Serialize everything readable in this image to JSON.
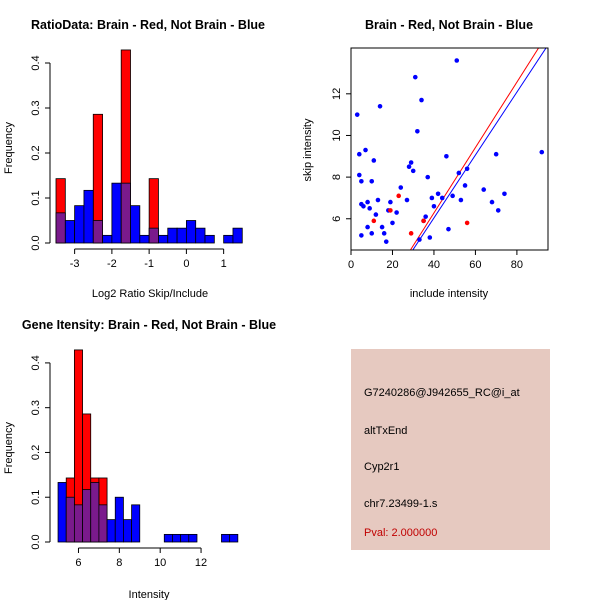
{
  "colors": {
    "brain": "#ff0000",
    "not_brain": "#0000ff",
    "overlap": "#7a1a8c",
    "info_bg": "#e6c9c0",
    "pval": "#c00000"
  },
  "chart_data": [
    {
      "id": "ratio-hist",
      "type": "bar",
      "title": "RatioData: Brain - Red, Not Brain - Blue",
      "xlabel": "Log2 Ratio Skip/Include",
      "ylabel": "Frequency",
      "xlim": [
        -3.5,
        1.6
      ],
      "ylim": [
        0,
        0.44
      ],
      "xticks": [
        -3,
        -2,
        -1,
        0,
        1
      ],
      "yticks": [
        0.0,
        0.1,
        0.2,
        0.3,
        0.4
      ],
      "bin_width": 0.25,
      "series": [
        {
          "name": "Brain",
          "bins": [
            {
              "x0": -3.5,
              "v": 0.143
            },
            {
              "x0": -2.5,
              "v": 0.286
            },
            {
              "x0": -1.75,
              "v": 0.429
            },
            {
              "x0": -1.0,
              "v": 0.143
            }
          ]
        },
        {
          "name": "Not Brain",
          "bins": [
            {
              "x0": -3.5,
              "v": 0.067
            },
            {
              "x0": -3.25,
              "v": 0.05
            },
            {
              "x0": -3.0,
              "v": 0.083
            },
            {
              "x0": -2.75,
              "v": 0.117
            },
            {
              "x0": -2.5,
              "v": 0.05
            },
            {
              "x0": -2.25,
              "v": 0.017
            },
            {
              "x0": -2.0,
              "v": 0.133
            },
            {
              "x0": -1.75,
              "v": 0.133
            },
            {
              "x0": -1.5,
              "v": 0.083
            },
            {
              "x0": -1.25,
              "v": 0.017
            },
            {
              "x0": -1.0,
              "v": 0.033
            },
            {
              "x0": -0.75,
              "v": 0.017
            },
            {
              "x0": -0.5,
              "v": 0.033
            },
            {
              "x0": -0.25,
              "v": 0.033
            },
            {
              "x0": 0.0,
              "v": 0.05
            },
            {
              "x0": 0.25,
              "v": 0.033
            },
            {
              "x0": 0.5,
              "v": 0.017
            },
            {
              "x0": 1.0,
              "v": 0.017
            },
            {
              "x0": 1.25,
              "v": 0.033
            }
          ]
        }
      ]
    },
    {
      "id": "scatter",
      "type": "scatter",
      "title": "Brain - Red, Not Brain - Blue",
      "xlabel": "include intensity",
      "ylabel": "skip intensity",
      "xlim": [
        0,
        95
      ],
      "ylim": [
        4.5,
        14.2
      ],
      "xticks": [
        0,
        20,
        40,
        60,
        80
      ],
      "yticks": [
        6,
        8,
        10,
        12
      ],
      "series": [
        {
          "name": "Not Brain",
          "points": [
            [
              3,
              11.0
            ],
            [
              4,
              8.1
            ],
            [
              4,
              9.1
            ],
            [
              5,
              7.8
            ],
            [
              5,
              6.7
            ],
            [
              5,
              5.2
            ],
            [
              6,
              6.6
            ],
            [
              7,
              9.3
            ],
            [
              8,
              6.8
            ],
            [
              8,
              5.6
            ],
            [
              9,
              6.5
            ],
            [
              10,
              7.8
            ],
            [
              10,
              5.3
            ],
            [
              11,
              8.8
            ],
            [
              12,
              6.2
            ],
            [
              13,
              6.9
            ],
            [
              14,
              11.4
            ],
            [
              15,
              5.6
            ],
            [
              16,
              5.3
            ],
            [
              17,
              4.9
            ],
            [
              18,
              6.4
            ],
            [
              19,
              6.8
            ],
            [
              20,
              5.8
            ],
            [
              22,
              6.3
            ],
            [
              24,
              7.5
            ],
            [
              27,
              6.9
            ],
            [
              28,
              8.5
            ],
            [
              29,
              8.7
            ],
            [
              30,
              8.3
            ],
            [
              31,
              12.8
            ],
            [
              32,
              10.2
            ],
            [
              33,
              5.0
            ],
            [
              34,
              11.7
            ],
            [
              35,
              5.9
            ],
            [
              36,
              6.1
            ],
            [
              37,
              8.0
            ],
            [
              38,
              5.1
            ],
            [
              39,
              7.0
            ],
            [
              40,
              6.6
            ],
            [
              42,
              7.2
            ],
            [
              44,
              7.0
            ],
            [
              46,
              9.0
            ],
            [
              47,
              5.5
            ],
            [
              49,
              7.1
            ],
            [
              51,
              13.6
            ],
            [
              52,
              8.2
            ],
            [
              53,
              6.9
            ],
            [
              55,
              7.6
            ],
            [
              56,
              8.4
            ],
            [
              64,
              7.4
            ],
            [
              68,
              6.8
            ],
            [
              70,
              9.1
            ],
            [
              71,
              6.4
            ],
            [
              74,
              7.2
            ],
            [
              92,
              9.2
            ]
          ]
        },
        {
          "name": "Brain",
          "points": [
            [
              11,
              5.9
            ],
            [
              19,
              6.4
            ],
            [
              23,
              7.1
            ],
            [
              29,
              5.3
            ],
            [
              35,
              5.9
            ],
            [
              56,
              5.8
            ]
          ]
        }
      ],
      "lines": [
        {
          "name": "Brain fit",
          "color_key": "brain",
          "slope": 0.157,
          "intercept": 0.0
        },
        {
          "name": "Not Brain fit",
          "color_key": "not_brain",
          "slope": 0.151,
          "intercept": 0.0
        }
      ]
    },
    {
      "id": "gene-hist",
      "type": "bar",
      "title": "Gene Itensity: Brain - Red, Not Brain - Blue",
      "xlabel": "Intensity",
      "ylabel": "Frequency",
      "xlim": [
        4.9,
        14.2
      ],
      "ylim": [
        0,
        0.44
      ],
      "xticks": [
        6,
        8,
        10,
        12
      ],
      "yticks": [
        0.0,
        0.1,
        0.2,
        0.3,
        0.4
      ],
      "bin_width": 0.4,
      "series": [
        {
          "name": "Brain",
          "bins": [
            {
              "x0": 5.4,
              "v": 0.143
            },
            {
              "x0": 5.8,
              "v": 0.429
            },
            {
              "x0": 6.2,
              "v": 0.286
            },
            {
              "x0": 6.6,
              "v": 0.143
            },
            {
              "x0": 7.0,
              "v": 0.143
            }
          ]
        },
        {
          "name": "Not Brain",
          "bins": [
            {
              "x0": 5.0,
              "v": 0.133
            },
            {
              "x0": 5.4,
              "v": 0.1
            },
            {
              "x0": 5.8,
              "v": 0.083
            },
            {
              "x0": 6.2,
              "v": 0.117
            },
            {
              "x0": 6.6,
              "v": 0.133
            },
            {
              "x0": 7.0,
              "v": 0.083
            },
            {
              "x0": 7.4,
              "v": 0.05
            },
            {
              "x0": 7.8,
              "v": 0.1
            },
            {
              "x0": 8.2,
              "v": 0.05
            },
            {
              "x0": 8.6,
              "v": 0.083
            },
            {
              "x0": 10.2,
              "v": 0.017
            },
            {
              "x0": 10.6,
              "v": 0.017
            },
            {
              "x0": 11.0,
              "v": 0.017
            },
            {
              "x0": 11.4,
              "v": 0.017
            },
            {
              "x0": 13.0,
              "v": 0.017
            },
            {
              "x0": 13.4,
              "v": 0.017
            }
          ]
        }
      ]
    }
  ],
  "info_panel": {
    "probe_id": "G7240286@J942655_RC@i_at",
    "event_type": "altTxEnd",
    "gene": "Cyp2r1",
    "location": "chr7.23499-1.s",
    "pval": "Pval: 2.000000"
  }
}
